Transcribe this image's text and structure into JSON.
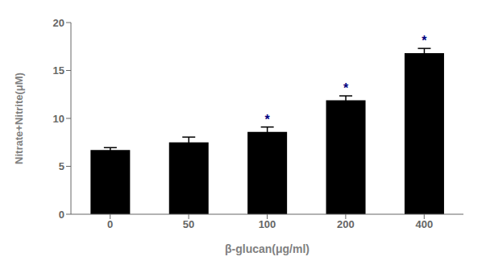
{
  "chart_data": {
    "type": "bar",
    "categories": [
      "0",
      "50",
      "100",
      "200",
      "400"
    ],
    "values": [
      6.7,
      7.5,
      8.6,
      11.9,
      16.8
    ],
    "errors": [
      0.25,
      0.55,
      0.5,
      0.45,
      0.5
    ],
    "color": "#000000",
    "xlabel": "β-glucan(μg/ml)",
    "ylabel": "Nitrate+Nitrite(μM)",
    "ylim": [
      0,
      20
    ],
    "yticks": [
      0,
      5,
      10,
      15,
      20
    ],
    "annotations": [
      {
        "category": "100",
        "text": "*",
        "color": "#000080"
      },
      {
        "category": "200",
        "text": "*",
        "color": "#000080"
      },
      {
        "category": "400",
        "text": "*",
        "color": "#000080"
      }
    ]
  }
}
